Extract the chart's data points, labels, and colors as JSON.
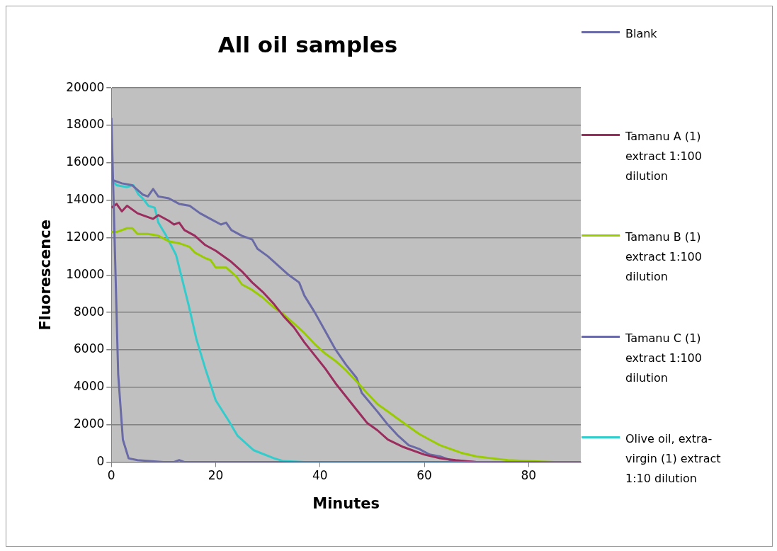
{
  "chart_data": {
    "type": "line",
    "title": "All oil samples",
    "xlabel": "Minutes",
    "ylabel": "Fluorescence",
    "xlim": [
      0,
      90
    ],
    "xticks": [
      0,
      20,
      40,
      60,
      80
    ],
    "ylim": [
      0,
      20000
    ],
    "yticks": [
      0,
      2000,
      4000,
      6000,
      8000,
      10000,
      12000,
      14000,
      16000,
      18000,
      20000
    ],
    "grid": "y",
    "legend": "right",
    "marker": "none",
    "line_style": "solid",
    "series": [
      {
        "name": "Blank",
        "color": "#6a6aa6",
        "x": [
          0,
          1.3,
          2.2,
          3.3,
          5,
          10,
          12,
          13,
          14,
          90
        ],
        "values": [
          18400,
          4700,
          1200,
          200,
          100,
          0,
          0,
          100,
          0,
          0
        ]
      },
      {
        "name": "Tamanu A (1) extract 1:100 dilution",
        "color": "#9b2c5e",
        "x": [
          0,
          1,
          2,
          3,
          5,
          6,
          8,
          9,
          11,
          12,
          13,
          14,
          16,
          18,
          20,
          22,
          23,
          25,
          27,
          29,
          31,
          33,
          35,
          37,
          39,
          41,
          43,
          45,
          47,
          49,
          51,
          53,
          56,
          60,
          63,
          66,
          70,
          90
        ],
        "values": [
          13600,
          13800,
          13400,
          13700,
          13300,
          13200,
          13000,
          13200,
          12900,
          12700,
          12800,
          12400,
          12100,
          11600,
          11300,
          10900,
          10700,
          10200,
          9600,
          9100,
          8500,
          7800,
          7200,
          6400,
          5700,
          5000,
          4200,
          3500,
          2800,
          2100,
          1700,
          1200,
          800,
          400,
          200,
          100,
          0,
          0
        ]
      },
      {
        "name": "Tamanu B (1) extract 1:100 dilution",
        "color": "#99cc00",
        "x": [
          0,
          1,
          3,
          4,
          5,
          7,
          9,
          11,
          13,
          15,
          16,
          18,
          19,
          20,
          22,
          24,
          25,
          27,
          29,
          31,
          33,
          35,
          37,
          39,
          41,
          43,
          45,
          47,
          49,
          51,
          53,
          55,
          57,
          59,
          61,
          63,
          65,
          67,
          70,
          73,
          76,
          80,
          85,
          90
        ],
        "values": [
          12300,
          12300,
          12500,
          12500,
          12200,
          12200,
          12100,
          11800,
          11700,
          11500,
          11200,
          10900,
          10800,
          10400,
          10400,
          9900,
          9500,
          9200,
          8800,
          8300,
          7900,
          7400,
          6900,
          6300,
          5800,
          5400,
          4900,
          4300,
          3700,
          3100,
          2700,
          2300,
          1900,
          1500,
          1200,
          900,
          700,
          500,
          300,
          200,
          100,
          50,
          0,
          0
        ]
      },
      {
        "name": "Tamanu C (1) extract 1:100 dilution",
        "color": "#6a6aa6",
        "x": [
          0,
          2,
          4,
          6,
          7,
          8,
          9,
          11,
          13,
          15,
          17,
          19,
          21,
          22,
          23,
          25,
          27,
          28,
          30,
          32,
          34,
          36,
          37,
          39,
          41,
          43,
          45,
          47,
          48,
          51,
          53,
          55,
          57,
          59,
          61,
          63,
          65,
          67,
          70,
          90
        ],
        "values": [
          15100,
          14900,
          14800,
          14300,
          14200,
          14600,
          14200,
          14100,
          13800,
          13700,
          13300,
          13000,
          12700,
          12800,
          12400,
          12100,
          11900,
          11400,
          11000,
          10500,
          10000,
          9600,
          8900,
          8000,
          7000,
          6000,
          5200,
          4500,
          3700,
          2700,
          2000,
          1400,
          900,
          700,
          400,
          300,
          100,
          50,
          0,
          0
        ]
      },
      {
        "name": "Olive oil, extra-virgin (1) extract 1:10 dilution",
        "color": "#33cccc",
        "x": [
          0,
          1,
          3,
          4.2,
          5.2,
          6,
          7.1,
          8.3,
          9,
          10.5,
          12.4,
          14.8,
          16.3,
          18,
          20,
          22.5,
          24.2,
          27.3,
          31.2,
          33,
          37,
          45,
          90
        ],
        "values": [
          15100,
          14800,
          14700,
          14800,
          14300,
          14100,
          13700,
          13600,
          12800,
          12100,
          11070,
          8400,
          6570,
          5000,
          3300,
          2200,
          1400,
          630,
          200,
          50,
          0,
          0,
          0
        ]
      }
    ]
  }
}
